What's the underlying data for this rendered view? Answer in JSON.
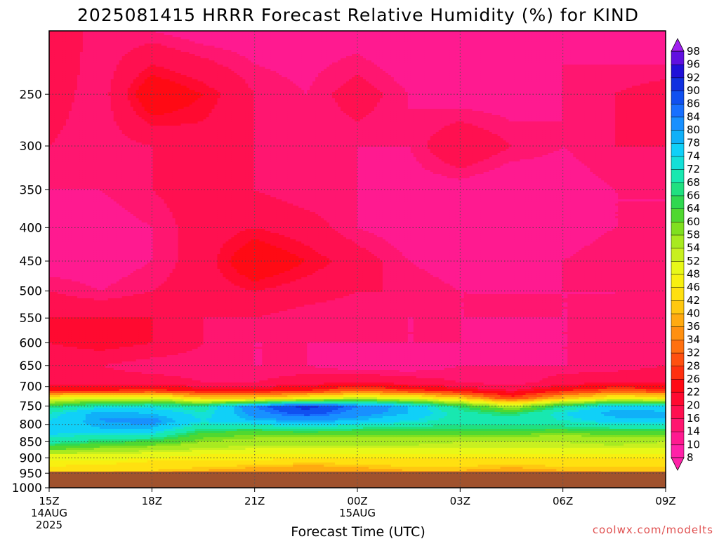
{
  "chart_data": {
    "type": "heatmap",
    "title": "2025081415 HRRR Forecast Relative Humidity (%) for KIND",
    "xlabel": "Forecast Time (UTC)",
    "ylabel": "",
    "x_ticks": [
      {
        "label": "15Z",
        "sub": [
          "14AUG",
          "2025"
        ]
      },
      {
        "label": "18Z",
        "sub": []
      },
      {
        "label": "21Z",
        "sub": []
      },
      {
        "label": "00Z",
        "sub": [
          "15AUG"
        ]
      },
      {
        "label": "03Z",
        "sub": []
      },
      {
        "label": "06Z",
        "sub": []
      },
      {
        "label": "09Z",
        "sub": []
      }
    ],
    "forecast_hours": [
      0,
      3,
      6,
      9,
      12,
      15,
      18
    ],
    "xlim": [
      0,
      18
    ],
    "pressure_ticks": [
      250,
      300,
      350,
      400,
      450,
      500,
      550,
      600,
      650,
      700,
      750,
      800,
      850,
      900,
      950,
      1000
    ],
    "ylim": [
      200,
      1000
    ],
    "y_scale": "log",
    "y_inverted": true,
    "surface_pressure": 975,
    "grid": true,
    "colorbar_levels": [
      8,
      10,
      14,
      16,
      20,
      22,
      26,
      28,
      32,
      34,
      36,
      40,
      42,
      46,
      48,
      52,
      54,
      58,
      60,
      64,
      66,
      68,
      72,
      74,
      78,
      80,
      84,
      86,
      90,
      92,
      96,
      98
    ],
    "colorbar_colors": [
      "#ff22a8",
      "#ff1a90",
      "#ff1670",
      "#ff1050",
      "#ff0a30",
      "#ff0a14",
      "#ff3010",
      "#ff5010",
      "#ff7010",
      "#ff9010",
      "#ffaa10",
      "#ffc810",
      "#ffe010",
      "#f8f010",
      "#e8f818",
      "#c8f020",
      "#a8ea20",
      "#80e020",
      "#50d830",
      "#30d850",
      "#20e080",
      "#18e8b0",
      "#14e0d8",
      "#10d0f8",
      "#10b0f8",
      "#1890ff",
      "#1870ff",
      "#1050f0",
      "#1030e0",
      "#2010d8",
      "#6010e0",
      "#a020f0"
    ],
    "profile_levels": [
      200,
      250,
      300,
      350,
      400,
      450,
      500,
      550,
      600,
      650,
      690,
      710,
      730,
      750,
      770,
      790,
      810,
      830,
      850,
      870,
      890,
      910,
      930,
      950,
      965
    ],
    "profile_hours": [
      0,
      1.5,
      3,
      4.5,
      6,
      7.5,
      9,
      10.5,
      12,
      13.5,
      15,
      16.5,
      18
    ],
    "rh": [
      [
        20,
        14,
        14,
        12,
        12,
        12,
        12,
        10,
        12,
        14,
        14,
        12,
        10
      ],
      [
        18,
        14,
        26,
        22,
        16,
        14,
        18,
        14,
        12,
        12,
        14,
        16,
        18
      ],
      [
        16,
        14,
        16,
        18,
        16,
        14,
        14,
        14,
        20,
        16,
        14,
        16,
        16
      ],
      [
        14,
        14,
        16,
        18,
        16,
        14,
        14,
        12,
        12,
        10,
        12,
        14,
        14
      ],
      [
        12,
        12,
        14,
        18,
        20,
        18,
        14,
        12,
        10,
        10,
        12,
        14,
        14
      ],
      [
        12,
        12,
        14,
        18,
        26,
        22,
        18,
        14,
        12,
        12,
        14,
        16,
        16
      ],
      [
        16,
        14,
        16,
        18,
        20,
        18,
        16,
        16,
        14,
        14,
        14,
        14,
        14
      ],
      [
        20,
        20,
        20,
        16,
        16,
        14,
        14,
        14,
        14,
        14,
        14,
        14,
        16
      ],
      [
        20,
        22,
        20,
        16,
        14,
        14,
        14,
        14,
        14,
        12,
        14,
        14,
        16
      ],
      [
        16,
        16,
        14,
        14,
        14,
        14,
        12,
        12,
        14,
        14,
        14,
        14,
        16
      ],
      [
        18,
        18,
        18,
        16,
        16,
        18,
        20,
        18,
        16,
        14,
        18,
        20,
        20
      ],
      [
        26,
        26,
        28,
        24,
        24,
        26,
        32,
        28,
        24,
        20,
        26,
        30,
        28
      ],
      [
        48,
        50,
        52,
        42,
        42,
        48,
        54,
        50,
        42,
        28,
        40,
        48,
        46
      ],
      [
        66,
        72,
        72,
        70,
        84,
        92,
        84,
        78,
        66,
        54,
        68,
        76,
        74
      ],
      [
        72,
        80,
        78,
        72,
        82,
        88,
        82,
        78,
        70,
        66,
        74,
        80,
        80
      ],
      [
        74,
        80,
        82,
        74,
        78,
        80,
        78,
        74,
        70,
        70,
        72,
        76,
        76
      ],
      [
        76,
        78,
        78,
        68,
        68,
        70,
        68,
        66,
        66,
        66,
        66,
        68,
        68
      ],
      [
        74,
        72,
        72,
        62,
        60,
        60,
        60,
        60,
        60,
        60,
        58,
        60,
        60
      ],
      [
        70,
        66,
        64,
        58,
        56,
        56,
        56,
        56,
        54,
        54,
        54,
        56,
        54
      ],
      [
        62,
        58,
        56,
        54,
        52,
        52,
        52,
        52,
        52,
        52,
        52,
        52,
        52
      ],
      [
        52,
        52,
        50,
        48,
        48,
        48,
        48,
        48,
        48,
        48,
        48,
        48,
        48
      ],
      [
        48,
        48,
        46,
        46,
        46,
        44,
        44,
        44,
        44,
        44,
        44,
        44,
        44
      ],
      [
        46,
        44,
        44,
        42,
        40,
        38,
        40,
        42,
        42,
        40,
        42,
        42,
        42
      ],
      [
        44,
        42,
        40,
        38,
        36,
        36,
        36,
        38,
        38,
        36,
        38,
        40,
        40
      ],
      [
        42,
        40,
        38,
        36,
        36,
        36,
        36,
        38,
        38,
        36,
        36,
        38,
        40
      ]
    ]
  },
  "credit": "coolwx.com/modelts"
}
